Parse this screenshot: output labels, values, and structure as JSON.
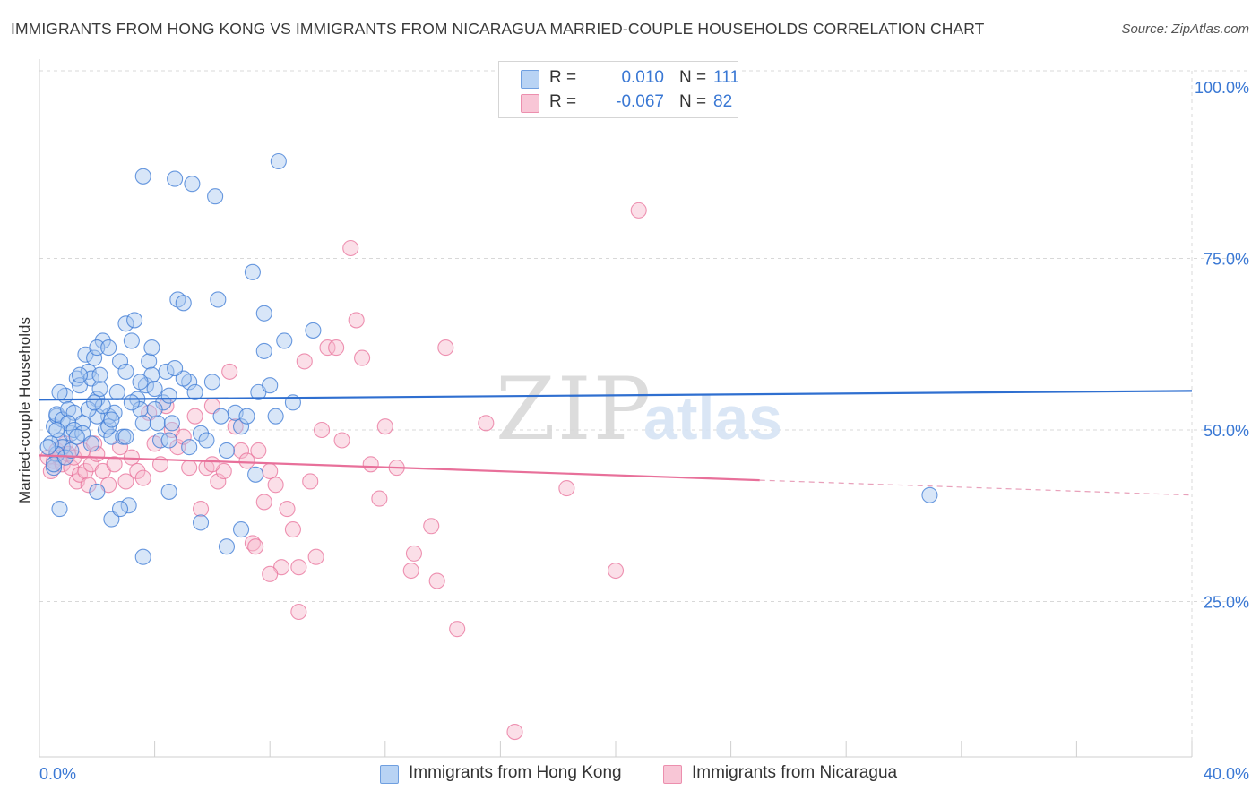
{
  "title": "IMMIGRANTS FROM HONG KONG VS IMMIGRANTS FROM NICARAGUA MARRIED-COUPLE HOUSEHOLDS CORRELATION CHART",
  "source": "Source: ZipAtlas.com",
  "watermark": {
    "zip": "ZIP",
    "atlas": "atlas"
  },
  "legend": {
    "rows": [
      {
        "r_label": "R =",
        "r_value": "0.010",
        "n_label": "N =",
        "n_value": "111"
      },
      {
        "r_label": "R =",
        "r_value": "-0.067",
        "n_label": "N =",
        "n_value": "82"
      }
    ]
  },
  "colors": {
    "blue": "#3a78d4",
    "blue_fill": "#a8c8f0",
    "pink": "#e8709a",
    "pink_fill": "#f6b8cc",
    "grid": "#d8d8d8",
    "axis_text": "#3a78d4"
  },
  "chart_data": {
    "type": "scatter",
    "title": "IMMIGRANTS FROM HONG KONG VS IMMIGRANTS FROM NICARAGUA MARRIED-COUPLE HOUSEHOLDS CORRELATION CHART",
    "xlabel": "",
    "ylabel": "Married-couple Households",
    "xlim": [
      0,
      40
    ],
    "ylim": [
      0,
      105
    ],
    "x_tick_labels": [
      {
        "value": 0,
        "label": "0.0%"
      },
      {
        "value": 40,
        "label": "40.0%"
      }
    ],
    "y_tick_labels": [
      {
        "value": 25,
        "label": "25.0%"
      },
      {
        "value": 50,
        "label": "50.0%"
      },
      {
        "value": 75,
        "label": "75.0%"
      },
      {
        "value": 100,
        "label": "100.0%"
      }
    ],
    "legend_position": "top-center",
    "series": [
      {
        "name": "Immigrants from Hong Kong",
        "color": "#3a78d4",
        "fill": "#a8c8f0",
        "R": 0.01,
        "N": 111,
        "trend": {
          "x0": 0,
          "y0": 54.4,
          "x1": 40,
          "y1": 55.7,
          "solid_until": 40
        },
        "points": [
          [
            0.5,
            50.5
          ],
          [
            0.6,
            52.0
          ],
          [
            0.6,
            52.3
          ],
          [
            0.7,
            48.5
          ],
          [
            0.7,
            38.5
          ],
          [
            0.8,
            51.5
          ],
          [
            0.9,
            55.0
          ],
          [
            1.0,
            53.0
          ],
          [
            1.1,
            49.5
          ],
          [
            1.2,
            52.5
          ],
          [
            1.3,
            57.5
          ],
          [
            1.4,
            56.5
          ],
          [
            1.5,
            51.0
          ],
          [
            1.6,
            61.0
          ],
          [
            1.7,
            58.5
          ],
          [
            1.8,
            57.5
          ],
          [
            1.9,
            60.5
          ],
          [
            2.0,
            54.5
          ],
          [
            2.1,
            56.0
          ],
          [
            2.2,
            63.0
          ],
          [
            2.3,
            50.0
          ],
          [
            2.4,
            52.0
          ],
          [
            2.5,
            49.0
          ],
          [
            2.6,
            52.5
          ],
          [
            2.7,
            55.5
          ],
          [
            2.8,
            60.0
          ],
          [
            2.9,
            49.0
          ],
          [
            3.0,
            65.5
          ],
          [
            3.1,
            39.0
          ],
          [
            3.2,
            63.0
          ],
          [
            3.3,
            66.0
          ],
          [
            3.4,
            54.5
          ],
          [
            3.5,
            53.0
          ],
          [
            3.6,
            51.0
          ],
          [
            3.7,
            56.5
          ],
          [
            3.8,
            60.0
          ],
          [
            3.9,
            58.0
          ],
          [
            4.0,
            56.0
          ],
          [
            4.1,
            51.0
          ],
          [
            4.2,
            48.5
          ],
          [
            4.3,
            54.0
          ],
          [
            4.4,
            58.5
          ],
          [
            4.5,
            48.5
          ],
          [
            4.6,
            51.0
          ],
          [
            4.8,
            69.0
          ],
          [
            5.0,
            68.5
          ],
          [
            5.2,
            57.0
          ],
          [
            5.4,
            55.5
          ],
          [
            5.6,
            49.5
          ],
          [
            5.8,
            48.5
          ],
          [
            6.0,
            57.0
          ],
          [
            6.2,
            69.0
          ],
          [
            6.5,
            47.0
          ],
          [
            6.8,
            52.5
          ],
          [
            7.0,
            50.5
          ],
          [
            7.2,
            52.0
          ],
          [
            7.4,
            73.0
          ],
          [
            7.6,
            55.5
          ],
          [
            7.8,
            67.0
          ],
          [
            8.0,
            56.5
          ],
          [
            8.2,
            52.0
          ],
          [
            8.5,
            63.0
          ],
          [
            8.8,
            54.0
          ],
          [
            9.5,
            64.5
          ],
          [
            1.0,
            51.0
          ],
          [
            1.2,
            50.0
          ],
          [
            1.5,
            49.5
          ],
          [
            0.8,
            47.5
          ],
          [
            0.6,
            46.5
          ],
          [
            0.5,
            44.5
          ],
          [
            0.4,
            48.0
          ],
          [
            0.3,
            47.5
          ],
          [
            0.5,
            45.0
          ],
          [
            0.9,
            46.0
          ],
          [
            1.1,
            47.0
          ],
          [
            2.0,
            52.0
          ],
          [
            2.2,
            53.5
          ],
          [
            2.4,
            50.5
          ],
          [
            3.0,
            49.0
          ],
          [
            1.8,
            48.0
          ],
          [
            1.7,
            53.0
          ],
          [
            1.9,
            54.0
          ],
          [
            2.5,
            51.5
          ],
          [
            3.5,
            57.0
          ],
          [
            3.2,
            54.0
          ],
          [
            4.0,
            53.0
          ],
          [
            4.5,
            55.0
          ],
          [
            5.0,
            57.5
          ],
          [
            0.7,
            55.5
          ],
          [
            1.4,
            58.0
          ],
          [
            0.6,
            50.0
          ],
          [
            1.3,
            49.0
          ],
          [
            2.0,
            41.0
          ],
          [
            2.5,
            37.0
          ],
          [
            2.8,
            38.5
          ],
          [
            3.6,
            31.5
          ],
          [
            4.5,
            41.0
          ],
          [
            5.6,
            36.5
          ],
          [
            6.5,
            33.0
          ],
          [
            7.0,
            35.5
          ],
          [
            7.5,
            43.5
          ],
          [
            2.0,
            62.0
          ],
          [
            2.1,
            58.0
          ],
          [
            2.4,
            62.0
          ],
          [
            3.0,
            58.5
          ],
          [
            3.9,
            62.0
          ],
          [
            4.7,
            59.0
          ],
          [
            5.2,
            47.5
          ],
          [
            7.8,
            61.5
          ],
          [
            30.9,
            40.5
          ],
          [
            6.3,
            52.0
          ]
        ],
        "high_points": [
          [
            3.6,
            88.0
          ],
          [
            4.7,
            87.5
          ],
          [
            5.3,
            86.5
          ],
          [
            6.1,
            84.0
          ],
          [
            8.3,
            91.0
          ]
        ]
      },
      {
        "name": "Immigrants from Nicaragua",
        "color": "#e8709a",
        "fill": "#f6b8cc",
        "R": -0.067,
        "N": 82,
        "trend": {
          "x0": 0,
          "y0": 46.3,
          "x1": 40,
          "y1": 40.5,
          "solid_until": 25
        },
        "points": [
          [
            0.3,
            46.0
          ],
          [
            0.4,
            44.0
          ],
          [
            0.5,
            45.5
          ],
          [
            0.6,
            47.0
          ],
          [
            0.7,
            46.0
          ],
          [
            0.8,
            45.0
          ],
          [
            0.9,
            48.0
          ],
          [
            1.0,
            46.5
          ],
          [
            1.1,
            44.5
          ],
          [
            1.2,
            46.0
          ],
          [
            1.3,
            42.5
          ],
          [
            1.4,
            43.5
          ],
          [
            1.5,
            47.0
          ],
          [
            1.6,
            44.0
          ],
          [
            1.7,
            42.0
          ],
          [
            1.8,
            45.0
          ],
          [
            1.9,
            48.0
          ],
          [
            2.0,
            46.5
          ],
          [
            2.2,
            44.0
          ],
          [
            2.4,
            42.0
          ],
          [
            2.6,
            45.0
          ],
          [
            2.8,
            47.5
          ],
          [
            3.0,
            42.5
          ],
          [
            3.2,
            46.0
          ],
          [
            3.4,
            44.0
          ],
          [
            3.6,
            43.0
          ],
          [
            3.8,
            52.5
          ],
          [
            4.0,
            48.0
          ],
          [
            4.2,
            45.0
          ],
          [
            4.4,
            53.5
          ],
          [
            4.6,
            50.0
          ],
          [
            4.8,
            47.5
          ],
          [
            5.0,
            49.0
          ],
          [
            5.2,
            44.5
          ],
          [
            5.4,
            52.0
          ],
          [
            5.6,
            38.5
          ],
          [
            5.8,
            44.5
          ],
          [
            6.0,
            53.5
          ],
          [
            6.2,
            42.5
          ],
          [
            6.4,
            44.0
          ],
          [
            6.6,
            58.5
          ],
          [
            6.8,
            50.5
          ],
          [
            7.0,
            47.0
          ],
          [
            7.2,
            45.5
          ],
          [
            7.4,
            33.5
          ],
          [
            7.6,
            47.0
          ],
          [
            7.8,
            39.5
          ],
          [
            8.0,
            44.0
          ],
          [
            8.2,
            42.0
          ],
          [
            8.4,
            30.0
          ],
          [
            8.6,
            38.5
          ],
          [
            8.8,
            35.5
          ],
          [
            9.0,
            30.0
          ],
          [
            9.2,
            60.0
          ],
          [
            9.4,
            42.5
          ],
          [
            9.6,
            31.5
          ],
          [
            9.8,
            50.0
          ],
          [
            10.0,
            62.0
          ],
          [
            10.3,
            62.0
          ],
          [
            10.5,
            48.5
          ],
          [
            10.8,
            76.5
          ],
          [
            11.0,
            66.0
          ],
          [
            11.2,
            60.5
          ],
          [
            11.5,
            45.0
          ],
          [
            11.8,
            40.0
          ],
          [
            12.0,
            50.5
          ],
          [
            12.4,
            44.5
          ],
          [
            12.9,
            29.5
          ],
          [
            13.0,
            32.0
          ],
          [
            13.6,
            36.0
          ],
          [
            13.8,
            28.0
          ],
          [
            14.1,
            62.0
          ],
          [
            14.5,
            21.0
          ],
          [
            15.5,
            51.0
          ],
          [
            16.5,
            6.0
          ],
          [
            18.3,
            41.5
          ],
          [
            20.0,
            29.5
          ],
          [
            20.8,
            82.0
          ],
          [
            9.0,
            23.5
          ],
          [
            8.0,
            29.0
          ],
          [
            7.5,
            33.0
          ],
          [
            6.0,
            45.0
          ]
        ]
      }
    ]
  },
  "axis_labels": {
    "y": "Married-couple Households",
    "x_left": "0.0%",
    "x_right": "40.0%",
    "y_ticks": [
      "100.0%",
      "75.0%",
      "50.0%",
      "25.0%"
    ]
  },
  "bottom_legend": {
    "items": [
      {
        "label": "Immigrants from Hong Kong"
      },
      {
        "label": "Immigrants from Nicaragua"
      }
    ]
  }
}
